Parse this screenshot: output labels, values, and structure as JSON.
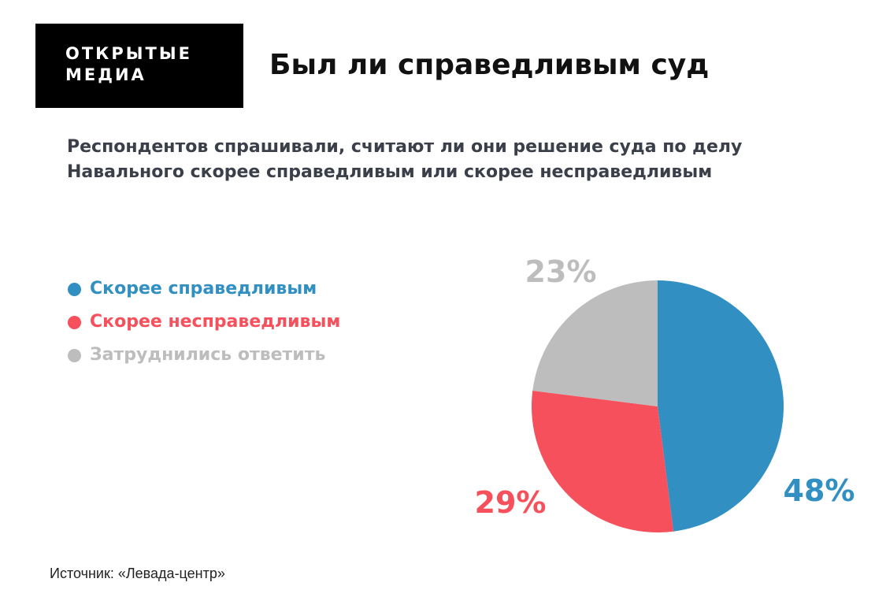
{
  "brand": {
    "line1": "ОТКРЫТЫЕ",
    "line2": "МЕДИА"
  },
  "source": "Источник: «Левада-центр»",
  "chart_data": {
    "type": "pie",
    "title": "Был ли справедливым суд",
    "subtitle_lines": [
      "Респондентов спрашивали, считают ли они решение суда по делу",
      "Навального скорее справедливым или скорее несправедливым"
    ],
    "legend_position": "left",
    "slices": [
      {
        "label": "Скорее справедливым",
        "value": 48,
        "value_label": "48%",
        "color": "#3190c1"
      },
      {
        "label": "Скорее несправедливым",
        "value": 29,
        "value_label": "29%",
        "color": "#f5505b"
      },
      {
        "label": "Затруднились ответить",
        "value": 23,
        "value_label": "23%",
        "color": "#bdbdbd"
      }
    ]
  }
}
